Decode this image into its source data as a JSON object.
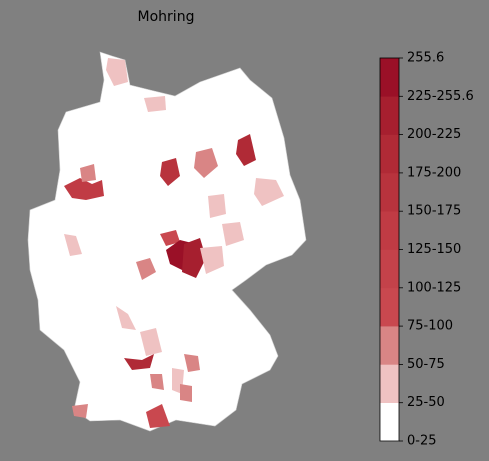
{
  "title": "Mohring",
  "colorbar": {
    "labels": [
      "0-25",
      "25-50",
      "50-75",
      "75-100",
      "100-125",
      "125-150",
      "150-175",
      "175-200",
      "200-225",
      "225-255.6",
      "255.6"
    ],
    "colors": [
      "#ffffff",
      "#efc2c2",
      "#d98585",
      "#c9484f",
      "#c4424a",
      "#c03b44",
      "#b8333d",
      "#b02a36",
      "#a61f2f",
      "#9a1027"
    ]
  }
}
